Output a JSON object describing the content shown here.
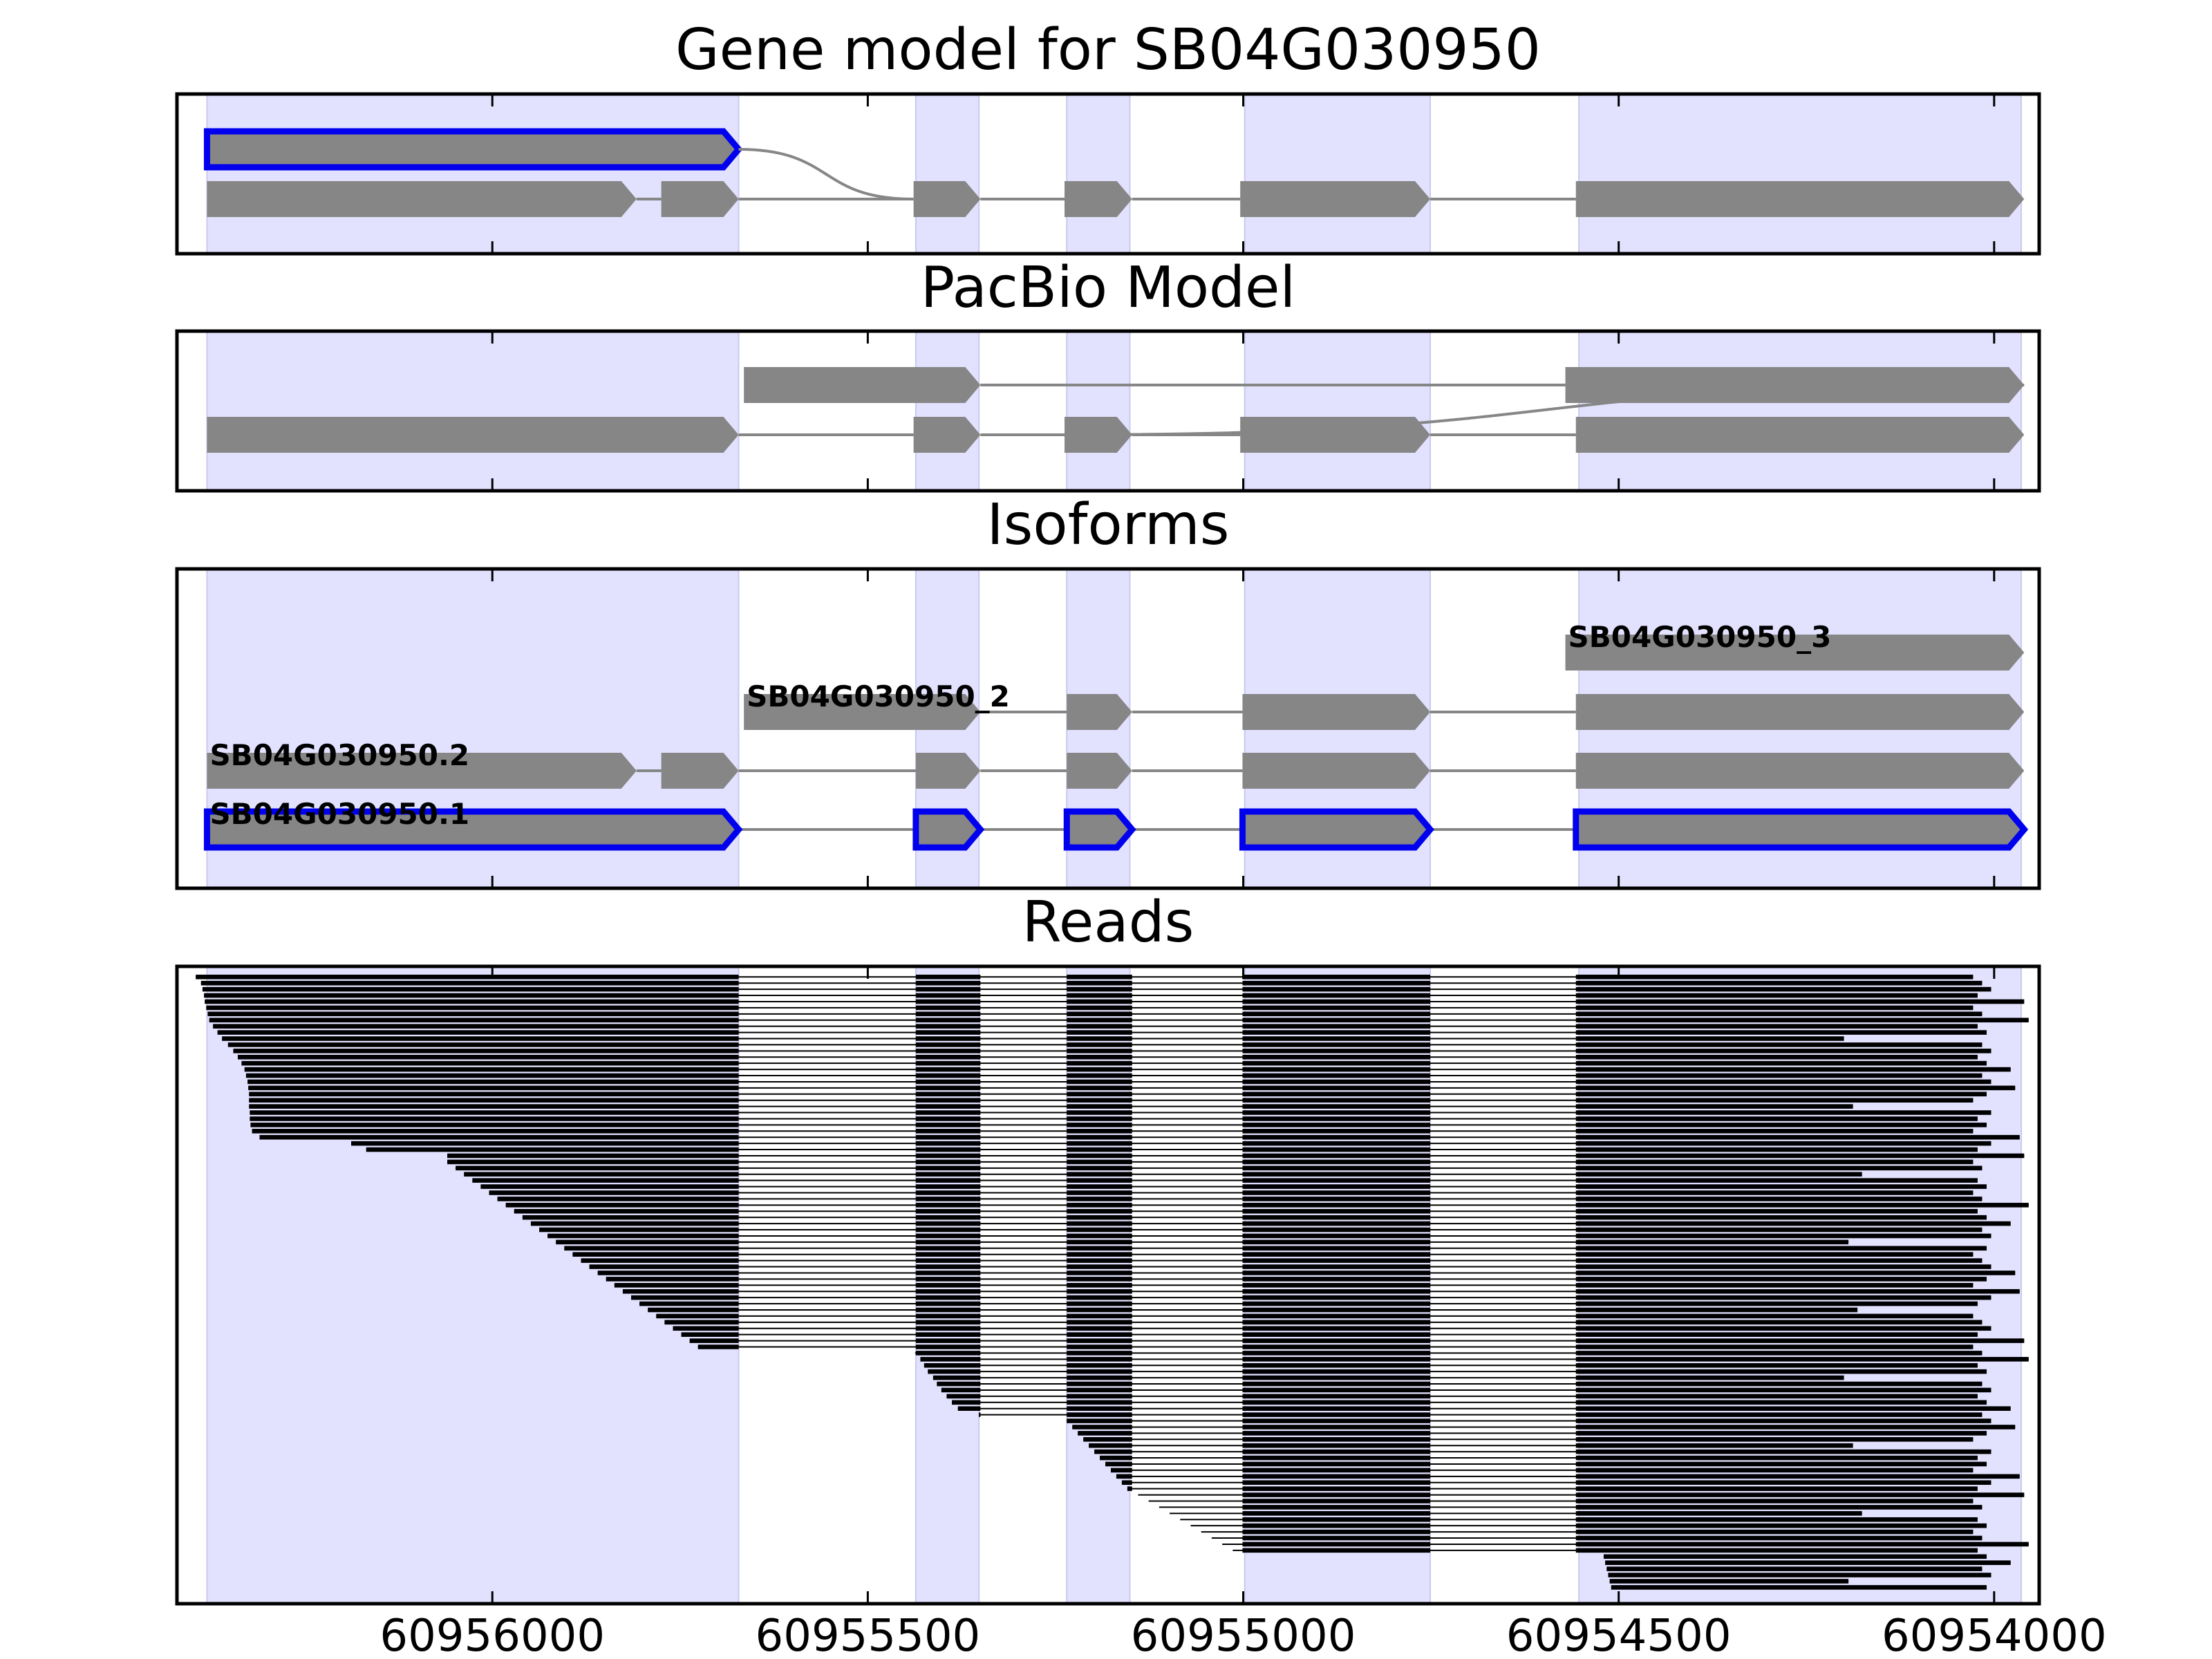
{
  "chart_data": {
    "type": "gene_model_tracks",
    "xlim": [
      60956420,
      60953940
    ],
    "xaxis_reversed": true,
    "xticks": [
      60956000,
      60955500,
      60955000,
      60954500,
      60954000
    ],
    "xtick_labels": [
      "60956000",
      "60955500",
      "60955000",
      "60954500",
      "60954000"
    ],
    "grid": false,
    "exon_shading": [
      [
        60956380,
        60955672
      ],
      [
        60955436,
        60955352
      ],
      [
        60955235,
        60955151
      ],
      [
        60954998,
        60954751
      ],
      [
        60954553,
        60953964
      ]
    ],
    "colors": {
      "feature": "#868686",
      "highlight": "#0000ee",
      "shading": "#e2e2ff",
      "read": "#000000"
    },
    "panels": [
      {
        "title": "Gene model for SB04G030950",
        "tracks": [
          {
            "highlight": true,
            "exons": [
              [
                60956380,
                60955672
              ]
            ],
            "connector_to": 60955439
          },
          {
            "highlight": false,
            "exons": [
              [
                60956380,
                60955808
              ],
              [
                60955775,
                60955672
              ],
              [
                60955439,
                60955350
              ],
              [
                60955238,
                60955148
              ],
              [
                60955004,
                60954751
              ],
              [
                60954557,
                60953960
              ]
            ]
          }
        ]
      },
      {
        "title": "PacBio Model",
        "tracks": [
          {
            "highlight": false,
            "exons": [
              [
                60955665,
                60955350
              ],
              [
                60954571,
                60953960
              ]
            ],
            "connector_to": 60955238
          },
          {
            "highlight": false,
            "exons": [
              [
                60956380,
                60955672
              ],
              [
                60955439,
                60955350
              ],
              [
                60955238,
                60955148
              ],
              [
                60955004,
                60954751
              ],
              [
                60954557,
                60953960
              ]
            ]
          }
        ]
      },
      {
        "title": "Isoforms",
        "tracks": [
          {
            "label": "SB04G030950_3",
            "highlight": false,
            "exons": [
              [
                60954571,
                60953960
              ]
            ]
          },
          {
            "label": "SB04G030950_2",
            "highlight": false,
            "exons": [
              [
                60955665,
                60955350
              ],
              [
                60955235,
                60955148
              ],
              [
                60955001,
                60954751
              ],
              [
                60954557,
                60953960
              ]
            ]
          },
          {
            "label": "SB04G030950.2",
            "highlight": false,
            "exons": [
              [
                60956380,
                60955808
              ],
              [
                60955775,
                60955672
              ],
              [
                60955436,
                60955350
              ],
              [
                60955235,
                60955148
              ],
              [
                60955001,
                60954751
              ],
              [
                60954557,
                60953960
              ]
            ]
          },
          {
            "label": "SB04G030950.1",
            "highlight": true,
            "exons": [
              [
                60956380,
                60955672
              ],
              [
                60955436,
                60955350
              ],
              [
                60955235,
                60955148
              ],
              [
                60955001,
                60954751
              ],
              [
                60954557,
                60953960
              ]
            ]
          }
        ]
      },
      {
        "title": "Reads",
        "read_count": 100,
        "read_exons": [
          [
            60955672,
            60955436,
            60955350,
            60955235,
            60955148,
            60955001,
            60954751,
            60954557
          ]
        ],
        "read_starts_first_30": [
          60956395,
          60956388,
          60956386,
          60956384,
          60956383,
          60956381,
          60956379,
          60956377,
          60956372,
          60956366,
          60956360,
          60956352,
          60956345,
          60956339,
          60956334,
          60956330,
          60956328,
          60956326,
          60956325,
          60956324,
          60956324,
          60956324,
          60956323,
          60956323,
          60956322,
          60956320,
          60956310,
          60956188,
          60956168,
          60956060
        ],
        "read_starts_61_to_71": [
          60955437,
          60955430,
          60955425,
          60955420,
          60955413,
          60955408,
          60955402,
          60955395,
          60955388,
          60955380,
          60955352
        ],
        "read_ends_sample": [
          60954028,
          60954028,
          60954028,
          60954028,
          60953978,
          60954028,
          60954028,
          60953978,
          60954028,
          60954028,
          60954200
        ]
      }
    ]
  }
}
